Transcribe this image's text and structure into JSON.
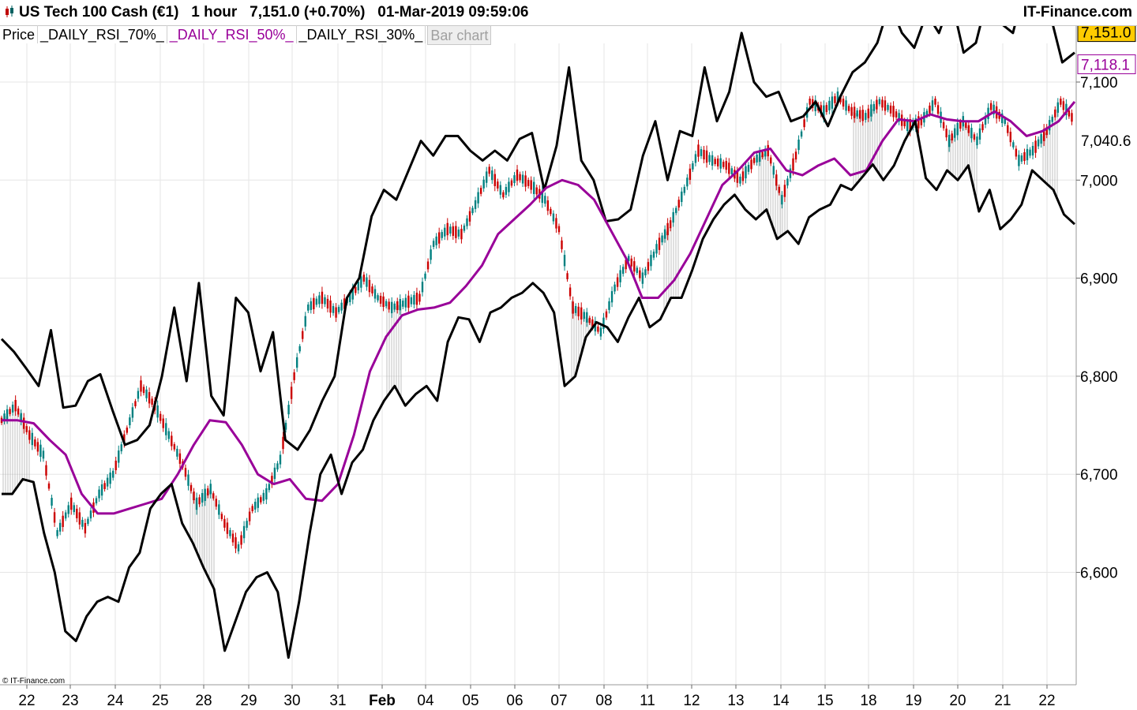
{
  "header": {
    "instrument": "US Tech 100 Cash (€1)",
    "timeframe": "1 hour",
    "last_change": "7,151.0 (+0.70%)",
    "datetime": "01-Mar-2019 09:59:06",
    "brand": "IT-Finance.com"
  },
  "legend": {
    "price": "Price",
    "rsi70": "_DAILY_RSI_70%_",
    "rsi50": "_DAILY_RSI_50%_",
    "rsi30": "_DAILY_RSI_30%_",
    "bar_chart": "Bar chart"
  },
  "copyright": "© IT-Finance.com",
  "colors": {
    "rsi70": "#000000",
    "rsi50": "#990099",
    "rsi30": "#000000",
    "up_candle": "#008080",
    "down_candle": "#cc0000",
    "price_badge": "#ffcc00"
  },
  "chart_data": {
    "type": "line",
    "title": "",
    "xlabel": "",
    "ylabel": "",
    "ylim": [
      6500,
      7200
    ],
    "y_ticks": [
      "7,100",
      "7,000",
      "6,900",
      "6,800",
      "6,700",
      "6,600"
    ],
    "y_tick_values": [
      7100,
      7000,
      6900,
      6800,
      6700,
      6600
    ],
    "x_tick_labels": [
      "22",
      "23",
      "24",
      "25",
      "28",
      "29",
      "30",
      "31",
      "Feb",
      "04",
      "05",
      "06",
      "07",
      "08",
      "11",
      "12",
      "13",
      "14",
      "15",
      "18",
      "19",
      "20",
      "21",
      "22"
    ],
    "price_badges": [
      {
        "label": "7,151.0",
        "value": 7151.0,
        "style": "last"
      },
      {
        "label": "7,118.1",
        "value": 7118.1,
        "style": "rsi50"
      },
      {
        "label": "7,040.6",
        "value": 7040.6,
        "style": "plain"
      }
    ],
    "series": [
      {
        "name": "_DAILY_RSI_70%_",
        "values": [
          6838,
          6825,
          6808,
          6790,
          6847,
          6768,
          6770,
          6795,
          6802,
          6765,
          6730,
          6735,
          6750,
          6800,
          6870,
          6795,
          6895,
          6780,
          6760,
          6880,
          6865,
          6805,
          6845,
          6735,
          6725,
          6745,
          6775,
          6800,
          6880,
          6900,
          6963,
          6990,
          6980,
          7010,
          7040,
          7025,
          7045,
          7045,
          7030,
          7020,
          7030,
          7020,
          7042,
          7048,
          6990,
          7035,
          7115,
          7020,
          7000,
          6958,
          6960,
          6970,
          7025,
          7060,
          7000,
          7050,
          7045,
          7115,
          7060,
          7090,
          7150,
          7100,
          7085,
          7090,
          7060,
          7065,
          7080,
          7055,
          7085,
          7110,
          7120,
          7140,
          7180,
          7150,
          7135,
          7170,
          7150,
          7185,
          7130,
          7140,
          7190,
          7160,
          7150,
          7200,
          7160,
          7170,
          7120,
          7130
        ]
      },
      {
        "name": "_DAILY_RSI_50%_",
        "values": [
          6755,
          6755,
          6752,
          6735,
          6720,
          6680,
          6660,
          6660,
          6665,
          6670,
          6675,
          6700,
          6730,
          6755,
          6753,
          6730,
          6700,
          6690,
          6695,
          6675,
          6673,
          6690,
          6740,
          6805,
          6840,
          6862,
          6868,
          6870,
          6875,
          6892,
          6913,
          6945,
          6960,
          6975,
          6992,
          7000,
          6995,
          6980,
          6950,
          6920,
          6880,
          6880,
          6898,
          6925,
          6960,
          6995,
          7010,
          7028,
          7032,
          7010,
          7005,
          7015,
          7022,
          7005,
          7010,
          7040,
          7062,
          7060,
          7067,
          7062,
          7060,
          7060,
          7070,
          7060,
          7045,
          7050,
          7060,
          7080
        ]
      },
      {
        "name": "_DAILY_RSI_30%_",
        "values": [
          6680,
          6680,
          6695,
          6692,
          6640,
          6600,
          6540,
          6530,
          6555,
          6570,
          6575,
          6570,
          6605,
          6620,
          6665,
          6680,
          6690,
          6650,
          6630,
          6605,
          6583,
          6520,
          6550,
          6580,
          6595,
          6600,
          6580,
          6513,
          6570,
          6640,
          6700,
          6720,
          6680,
          6712,
          6725,
          6755,
          6775,
          6790,
          6770,
          6782,
          6790,
          6775,
          6835,
          6860,
          6858,
          6835,
          6865,
          6870,
          6880,
          6885,
          6895,
          6885,
          6865,
          6790,
          6800,
          6840,
          6855,
          6850,
          6835,
          6860,
          6880,
          6850,
          6858,
          6880,
          6880,
          6908,
          6940,
          6960,
          6975,
          6985,
          6970,
          6960,
          6970,
          6940,
          6948,
          6935,
          6962,
          6970,
          6975,
          6995,
          6990,
          7003,
          7016,
          7000,
          7015,
          7040,
          7060,
          7002,
          6990,
          7010,
          7000,
          7015,
          6968,
          6990,
          6950,
          6960,
          6975,
          7010,
          7000,
          6990,
          6965,
          6955
        ]
      },
      {
        "name": "",
        "values": [
          6755,
          6770,
          6740,
          6720,
          6640,
          6670,
          6645,
          6680,
          6700,
          6745,
          6790,
          6770,
          6740,
          6710,
          6670,
          6685,
          6650,
          6625,
          6665,
          6680,
          6715,
          6800,
          6870,
          6880,
          6865,
          6880,
          6900,
          6880,
          6870,
          6875,
          6880,
          6935,
          6950,
          6945,
          6975,
          7010,
          6985,
          7005,
          6995,
          6980,
          6950,
          6870,
          6860,
          6845,
          6890,
          6920,
          6900,
          6930,
          6955,
          6990,
          7030,
          7020,
          7015,
          7000,
          7020,
          7030,
          6980,
          7025,
          7080,
          7070,
          7085,
          7070,
          7065,
          7080,
          7070,
          7055,
          7060,
          7080,
          7040,
          7060,
          7040,
          7075,
          7060,
          7020,
          7030,
          7050,
          7080,
          7060
        ]
      }
    ]
  }
}
